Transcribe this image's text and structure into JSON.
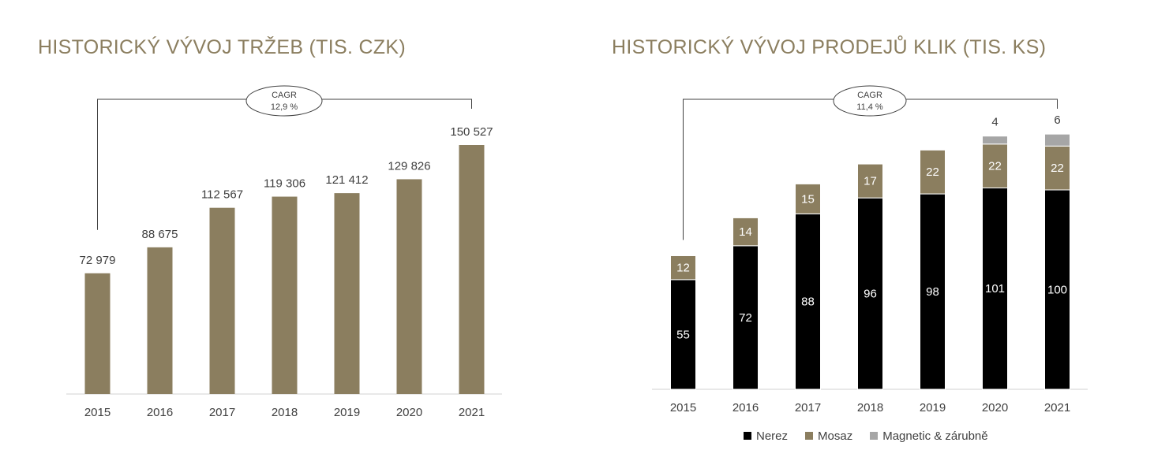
{
  "colors": {
    "title": "#8b7e5f",
    "text": "#404040",
    "axis": "#d0d0d0",
    "bracket": "#404040"
  },
  "chart_data": [
    {
      "type": "bar",
      "title": "HISTORICKÝ VÝVOJ TRŽEB (TIS. CZK)",
      "categories": [
        "2015",
        "2016",
        "2017",
        "2018",
        "2019",
        "2020",
        "2021"
      ],
      "values": [
        72979,
        88675,
        112567,
        119306,
        121412,
        129826,
        150527
      ],
      "value_labels": [
        "72 979",
        "88 675",
        "112 567",
        "119 306",
        "121 412",
        "129 826",
        "150 527"
      ],
      "color": "#8b7e5f",
      "ylim": [
        0,
        150527
      ],
      "grid": false,
      "annotation": {
        "label_line1": "CAGR",
        "label_line2": "12,9 %"
      }
    },
    {
      "type": "stacked-bar",
      "title": "HISTORICKÝ VÝVOJ PRODEJŮ KLIK (TIS. KS)",
      "categories": [
        "2015",
        "2016",
        "2017",
        "2018",
        "2019",
        "2020",
        "2021"
      ],
      "series": [
        {
          "name": "Nerez",
          "color": "#000000",
          "values": [
            55,
            72,
            88,
            96,
            98,
            101,
            100
          ]
        },
        {
          "name": "Mosaz",
          "color": "#8b7e5f",
          "values": [
            12,
            14,
            15,
            17,
            22,
            22,
            22
          ]
        },
        {
          "name": "Magnetic & zárubně",
          "color": "#a6a6a6",
          "values": [
            0,
            0,
            0,
            0,
            0,
            4,
            6
          ]
        }
      ],
      "ylim": [
        0,
        128
      ],
      "grid": false,
      "legend": "bottom",
      "annotation": {
        "label_line1": "CAGR",
        "label_line2": "11,4 %"
      }
    }
  ]
}
